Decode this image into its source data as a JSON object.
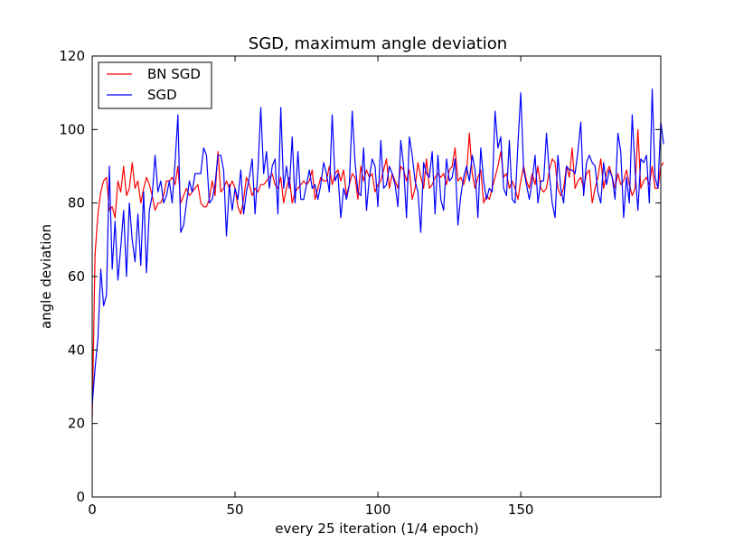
{
  "chart_data": {
    "type": "line",
    "title": "SGD, maximum angle deviation",
    "xlabel": "every 25 iteration (1/4 epoch)",
    "ylabel": "angle deviation",
    "xlim": [
      0,
      199
    ],
    "ylim": [
      0,
      120
    ],
    "x_ticks": [
      0,
      50,
      100,
      150
    ],
    "y_ticks": [
      0,
      20,
      40,
      60,
      80,
      100,
      120
    ],
    "grid": false,
    "legend_position": "top-left",
    "series": [
      {
        "name": "BN SGD",
        "color": "#ff0000",
        "values": [
          21,
          66,
          77,
          83,
          86,
          87,
          78,
          79,
          76,
          86,
          83,
          90,
          82,
          84,
          91,
          84,
          86,
          80,
          84,
          87,
          85,
          82,
          78,
          80,
          80,
          82,
          86,
          86,
          87,
          85,
          90,
          80,
          82,
          84,
          82,
          83,
          84,
          85,
          80,
          79,
          79,
          81,
          86,
          82,
          94,
          83,
          84,
          86,
          84,
          86,
          84,
          79,
          77,
          81,
          87,
          85,
          82,
          84,
          83,
          85,
          85,
          86,
          87,
          88,
          85,
          84,
          87,
          80,
          84,
          87,
          80,
          83,
          84,
          85,
          86,
          85,
          86,
          89,
          81,
          84,
          87,
          86,
          86,
          90,
          85,
          88,
          89,
          86,
          89,
          82,
          85,
          88,
          87,
          81,
          90,
          86,
          89,
          87,
          88,
          83,
          85,
          86,
          89,
          92,
          84,
          88,
          86,
          84,
          90,
          89,
          86,
          89,
          81,
          84,
          91,
          87,
          84,
          92,
          84,
          85,
          87,
          88,
          87,
          88,
          85,
          89,
          90,
          95,
          86,
          87,
          85,
          88,
          99,
          88,
          84,
          87,
          89,
          80,
          82,
          81,
          84,
          87,
          90,
          94,
          87,
          88,
          84,
          86,
          84,
          81,
          86,
          90,
          86,
          84,
          88,
          85,
          90,
          84,
          83,
          84,
          89,
          92,
          91,
          84,
          82,
          84,
          90,
          87,
          95,
          84,
          86,
          87,
          84,
          88,
          89,
          80,
          84,
          87,
          92,
          84,
          88,
          90,
          87,
          84,
          88,
          85,
          86,
          89,
          85,
          82,
          84,
          100,
          84,
          86,
          87,
          85,
          90,
          84,
          84,
          90,
          91
        ]
      },
      {
        "name": "SGD",
        "color": "#0000ff",
        "values": [
          25,
          35,
          43,
          62,
          52,
          55,
          90,
          62,
          75,
          59,
          68,
          78,
          60,
          80,
          70,
          64,
          77,
          63,
          83,
          61,
          78,
          82,
          93,
          83,
          86,
          80,
          82,
          86,
          80,
          91,
          104,
          72,
          74,
          80,
          86,
          83,
          88,
          88,
          88,
          95,
          93,
          80,
          81,
          85,
          93,
          93,
          89,
          71,
          85,
          78,
          84,
          81,
          89,
          77,
          83,
          87,
          92,
          77,
          89,
          106,
          88,
          94,
          84,
          90,
          92,
          77,
          106,
          84,
          90,
          84,
          98,
          80,
          94,
          81,
          81,
          85,
          89,
          84,
          85,
          81,
          85,
          91,
          88,
          83,
          104,
          86,
          88,
          76,
          84,
          81,
          85,
          105,
          91,
          83,
          82,
          95,
          78,
          87,
          92,
          90,
          79,
          97,
          84,
          85,
          90,
          88,
          85,
          79,
          97,
          90,
          76,
          98,
          93,
          86,
          83,
          72,
          91,
          88,
          87,
          94,
          77,
          93,
          81,
          78,
          92,
          86,
          87,
          92,
          74,
          82,
          87,
          90,
          86,
          93,
          89,
          76,
          95,
          86,
          81,
          84,
          83,
          105,
          95,
          98,
          84,
          82,
          97,
          81,
          80,
          96,
          110,
          89,
          85,
          81,
          86,
          93,
          80,
          86,
          86,
          99,
          88,
          80,
          76,
          93,
          84,
          80,
          90,
          89,
          89,
          88,
          94,
          102,
          82,
          91,
          93,
          91,
          90,
          83,
          80,
          91,
          85,
          89,
          87,
          81,
          99,
          94,
          76,
          87,
          80,
          104,
          89,
          78,
          92,
          91,
          93,
          80,
          111,
          87,
          84,
          102,
          96
        ]
      }
    ]
  }
}
